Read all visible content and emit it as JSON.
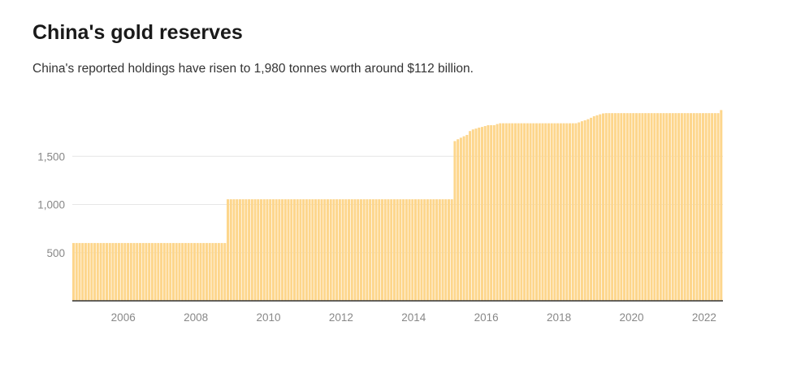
{
  "chart_data": {
    "type": "bar",
    "title": "China's gold reserves",
    "subtitle": "China's reported holdings have risen to 1,980 tonnes worth around $112 billion.",
    "xlabel": "",
    "ylabel": "",
    "unit": "tonnes",
    "frequency": "monthly",
    "start_month": "2005-01",
    "monthly_runs": [
      [
        51,
        600
      ],
      [
        75,
        1054
      ],
      [
        1,
        1658
      ],
      [
        1,
        1677
      ],
      [
        1,
        1693
      ],
      [
        1,
        1708
      ],
      [
        1,
        1722
      ],
      [
        1,
        1762
      ],
      [
        1,
        1779
      ],
      [
        1,
        1788
      ],
      [
        1,
        1798
      ],
      [
        1,
        1805
      ],
      [
        1,
        1814
      ],
      [
        3,
        1823
      ],
      [
        1,
        1835
      ],
      [
        26,
        1843
      ],
      [
        1,
        1852
      ],
      [
        1,
        1864
      ],
      [
        1,
        1874
      ],
      [
        1,
        1885
      ],
      [
        1,
        1900
      ],
      [
        1,
        1916
      ],
      [
        1,
        1926
      ],
      [
        1,
        1936
      ],
      [
        1,
        1945
      ],
      [
        38,
        1948
      ],
      [
        1,
        1980
      ]
    ],
    "ylim": [
      0,
      2000
    ],
    "xlim": [
      2005,
      2022.92
    ],
    "y_ticks": [
      {
        "value": 500,
        "label": "500"
      },
      {
        "value": 1000,
        "label": "1,000"
      },
      {
        "value": 1500,
        "label": "1,500"
      }
    ],
    "x_ticks": [
      {
        "value": 2006,
        "label": "2006"
      },
      {
        "value": 2008,
        "label": "2008"
      },
      {
        "value": 2010,
        "label": "2010"
      },
      {
        "value": 2012,
        "label": "2012"
      },
      {
        "value": 2014,
        "label": "2014"
      },
      {
        "value": 2016,
        "label": "2016"
      },
      {
        "value": 2018,
        "label": "2018"
      },
      {
        "value": 2020,
        "label": "2020"
      },
      {
        "value": 2022,
        "label": "2022"
      }
    ],
    "grid": true,
    "bar_color": "#fdd68c",
    "legend": "none"
  }
}
